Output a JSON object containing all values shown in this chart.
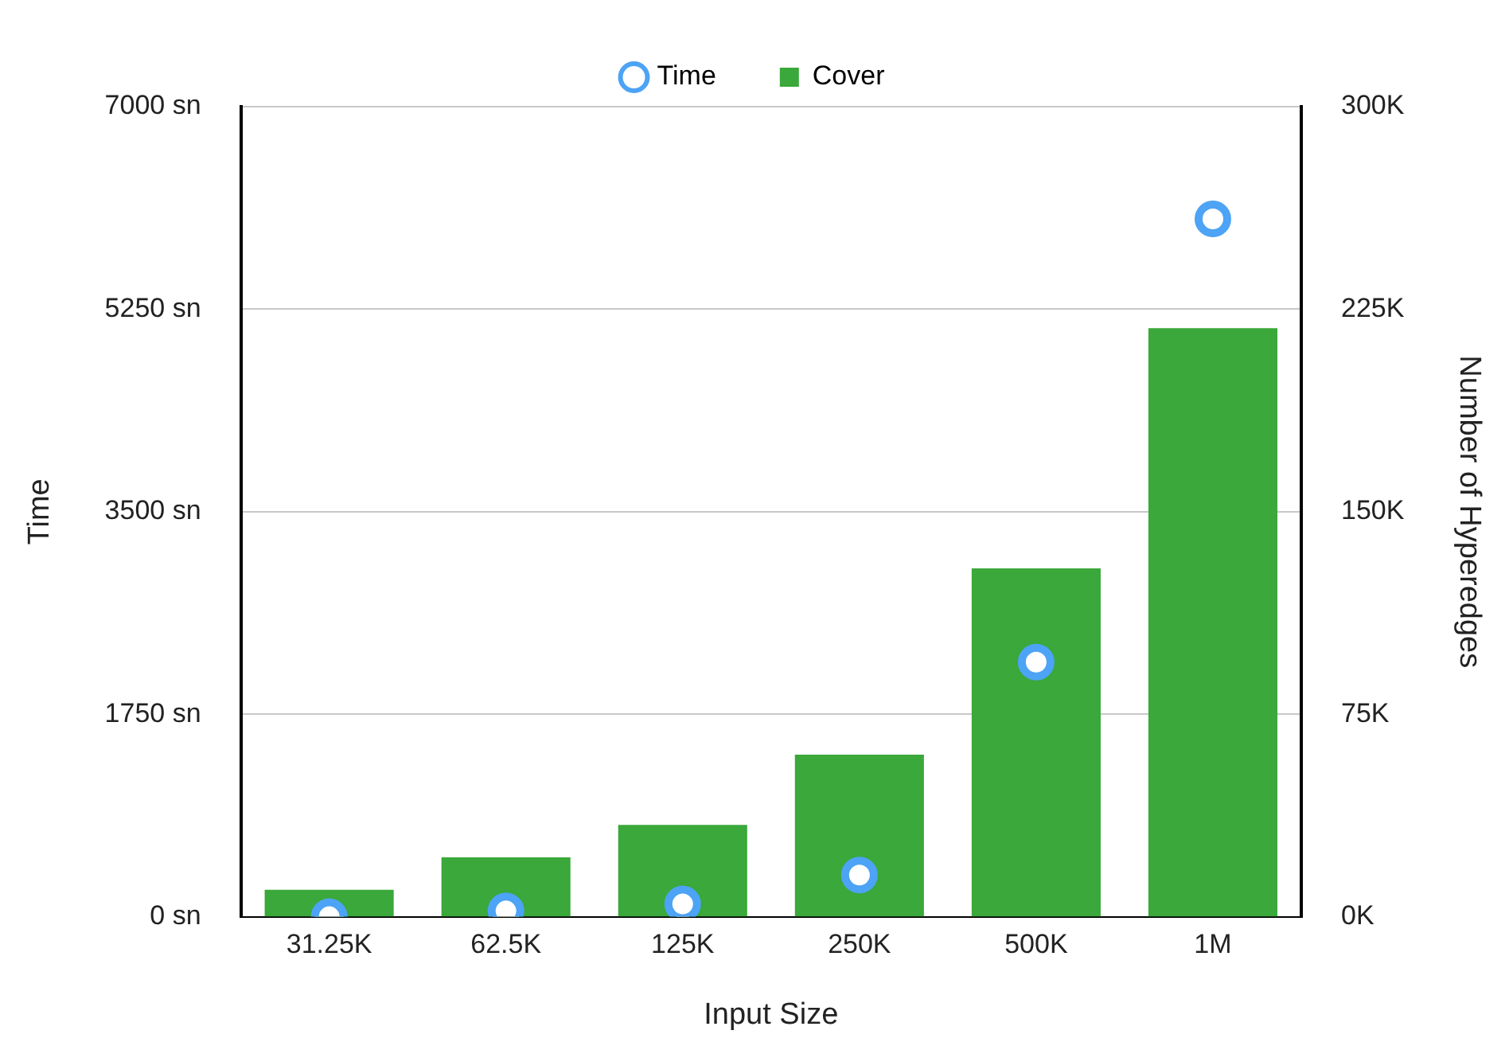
{
  "chart_data": {
    "type": "bar",
    "xlabel": "Input Size",
    "ylabel": "Time",
    "y2label": "Number of Hyperedges",
    "categories": [
      "31.25K",
      "62.5K",
      "125K",
      "250K",
      "500K",
      "1M"
    ],
    "series": [
      {
        "name": "Time",
        "type": "scatter",
        "marker": "circle",
        "color": "#4da3f5",
        "values": [
          0,
          50,
          110,
          360,
          2200,
          6030
        ]
      },
      {
        "name": "Cover",
        "axis": "y2",
        "color": "#3aa83a",
        "values": [
          10,
          22,
          34,
          60,
          129,
          218
        ]
      }
    ],
    "ylim": [
      0,
      7000
    ],
    "yticks": [
      {
        "value": 0,
        "label": "0 sn"
      },
      {
        "value": 1750,
        "label": "1750 sn"
      },
      {
        "value": 3500,
        "label": "3500 sn"
      },
      {
        "value": 5250,
        "label": "5250 sn"
      },
      {
        "value": 7000,
        "label": "7000 sn"
      }
    ],
    "y2lim": [
      0,
      300
    ],
    "y2ticks": [
      {
        "value": 0,
        "label": "0K"
      },
      {
        "value": 75,
        "label": "75K"
      },
      {
        "value": 150,
        "label": "150K"
      },
      {
        "value": 225,
        "label": "225K"
      },
      {
        "value": 300,
        "label": "300K"
      }
    ],
    "grid": "y",
    "legend": "top"
  }
}
